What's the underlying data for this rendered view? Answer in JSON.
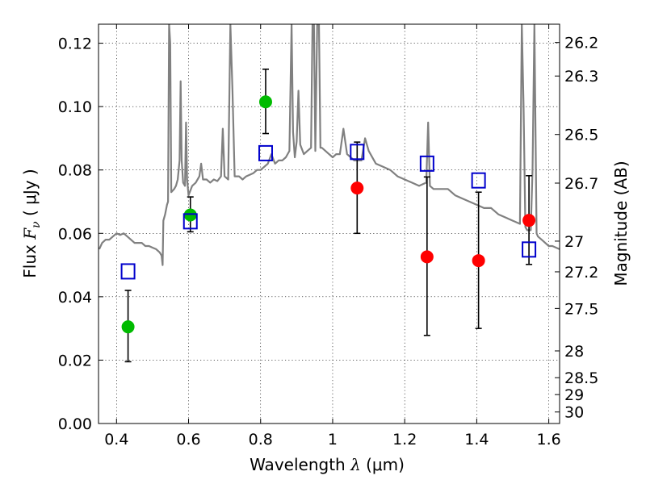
{
  "chart_data": {
    "type": "scatter",
    "title": "",
    "xlabel": {
      "prefix": "Wavelength ",
      "symbol": "λ",
      "unit": " (μm)"
    },
    "ylabel": {
      "prefix": "Flux ",
      "symbol": "F",
      "sub": "ν",
      "unit": " ( μJy )"
    },
    "y2label": "Magnitude (AB)",
    "xlim": [
      0.35,
      1.63
    ],
    "ylim": [
      0.0,
      0.126
    ],
    "grid": true,
    "x_ticks": [
      {
        "value": 0.4,
        "label": "0.4"
      },
      {
        "value": 0.6,
        "label": "0.6"
      },
      {
        "value": 0.8,
        "label": "0.8"
      },
      {
        "value": 1.0,
        "label": "1"
      },
      {
        "value": 1.2,
        "label": "1.2"
      },
      {
        "value": 1.4,
        "label": "1.4"
      },
      {
        "value": 1.6,
        "label": "1.6"
      }
    ],
    "y_ticks": [
      {
        "value": 0.0,
        "label": "0.00"
      },
      {
        "value": 0.02,
        "label": "0.02"
      },
      {
        "value": 0.04,
        "label": "0.04"
      },
      {
        "value": 0.06,
        "label": "0.06"
      },
      {
        "value": 0.08,
        "label": "0.08"
      },
      {
        "value": 0.1,
        "label": "0.10"
      },
      {
        "value": 0.12,
        "label": "0.12"
      }
    ],
    "mag_ticks": [
      {
        "mag": 26.2,
        "label": "26.2"
      },
      {
        "mag": 26.3,
        "label": "26.3"
      },
      {
        "mag": 26.5,
        "label": "26.5"
      },
      {
        "mag": 26.7,
        "label": "26.7"
      },
      {
        "mag": 27.0,
        "label": "27"
      },
      {
        "mag": 27.2,
        "label": "27.2"
      },
      {
        "mag": 27.5,
        "label": "27.5"
      },
      {
        "mag": 28.0,
        "label": "28"
      },
      {
        "mag": 28.5,
        "label": "28.5"
      },
      {
        "mag": 29.0,
        "label": "29"
      },
      {
        "mag": 30.0,
        "label": "30"
      }
    ],
    "model_spectrum": {
      "color": "#808080",
      "points": [
        [
          0.352,
          0.055
        ],
        [
          0.36,
          0.057
        ],
        [
          0.37,
          0.058
        ],
        [
          0.38,
          0.058
        ],
        [
          0.39,
          0.059
        ],
        [
          0.4,
          0.06
        ],
        [
          0.41,
          0.0595
        ],
        [
          0.42,
          0.06
        ],
        [
          0.43,
          0.059
        ],
        [
          0.44,
          0.058
        ],
        [
          0.45,
          0.057
        ],
        [
          0.46,
          0.057
        ],
        [
          0.47,
          0.057
        ],
        [
          0.48,
          0.056
        ],
        [
          0.49,
          0.056
        ],
        [
          0.5,
          0.0555
        ],
        [
          0.51,
          0.055
        ],
        [
          0.52,
          0.054
        ],
        [
          0.525,
          0.053
        ],
        [
          0.528,
          0.05
        ],
        [
          0.53,
          0.064
        ],
        [
          0.535,
          0.066
        ],
        [
          0.54,
          0.069
        ],
        [
          0.543,
          0.07
        ],
        [
          0.546,
          0.126
        ],
        [
          0.549,
          0.12
        ],
        [
          0.552,
          0.073
        ],
        [
          0.56,
          0.074
        ],
        [
          0.565,
          0.075
        ],
        [
          0.57,
          0.077
        ],
        [
          0.575,
          0.083
        ],
        [
          0.578,
          0.108
        ],
        [
          0.581,
          0.083
        ],
        [
          0.585,
          0.076
        ],
        [
          0.59,
          0.075
        ],
        [
          0.593,
          0.095
        ],
        [
          0.596,
          0.077
        ],
        [
          0.6,
          0.072
        ],
        [
          0.61,
          0.075
        ],
        [
          0.62,
          0.076
        ],
        [
          0.63,
          0.078
        ],
        [
          0.635,
          0.082
        ],
        [
          0.64,
          0.077
        ],
        [
          0.65,
          0.077
        ],
        [
          0.66,
          0.076
        ],
        [
          0.67,
          0.077
        ],
        [
          0.68,
          0.0765
        ],
        [
          0.69,
          0.078
        ],
        [
          0.695,
          0.093
        ],
        [
          0.7,
          0.078
        ],
        [
          0.71,
          0.077
        ],
        [
          0.716,
          0.126
        ],
        [
          0.722,
          0.105
        ],
        [
          0.728,
          0.078
        ],
        [
          0.74,
          0.078
        ],
        [
          0.75,
          0.077
        ],
        [
          0.76,
          0.078
        ],
        [
          0.77,
          0.0785
        ],
        [
          0.78,
          0.079
        ],
        [
          0.79,
          0.08
        ],
        [
          0.8,
          0.08
        ],
        [
          0.81,
          0.081
        ],
        [
          0.82,
          0.082
        ],
        [
          0.83,
          0.085
        ],
        [
          0.84,
          0.082
        ],
        [
          0.85,
          0.083
        ],
        [
          0.86,
          0.083
        ],
        [
          0.87,
          0.084
        ],
        [
          0.88,
          0.086
        ],
        [
          0.886,
          0.126
        ],
        [
          0.89,
          0.092
        ],
        [
          0.895,
          0.084
        ],
        [
          0.9,
          0.089
        ],
        [
          0.905,
          0.105
        ],
        [
          0.91,
          0.088
        ],
        [
          0.92,
          0.085
        ],
        [
          0.93,
          0.086
        ],
        [
          0.94,
          0.087
        ],
        [
          0.944,
          0.126
        ],
        [
          0.948,
          0.126
        ],
        [
          0.952,
          0.086
        ],
        [
          0.957,
          0.126
        ],
        [
          0.962,
          0.126
        ],
        [
          0.966,
          0.087
        ],
        [
          0.97,
          0.087
        ],
        [
          0.98,
          0.086
        ],
        [
          0.99,
          0.085
        ],
        [
          1.0,
          0.084
        ],
        [
          1.01,
          0.085
        ],
        [
          1.02,
          0.085
        ],
        [
          1.03,
          0.093
        ],
        [
          1.04,
          0.085
        ],
        [
          1.05,
          0.084
        ],
        [
          1.06,
          0.083
        ],
        [
          1.07,
          0.083
        ],
        [
          1.08,
          0.083
        ],
        [
          1.09,
          0.09
        ],
        [
          1.1,
          0.086
        ],
        [
          1.12,
          0.082
        ],
        [
          1.14,
          0.081
        ],
        [
          1.16,
          0.08
        ],
        [
          1.18,
          0.078
        ],
        [
          1.2,
          0.077
        ],
        [
          1.22,
          0.076
        ],
        [
          1.24,
          0.075
        ],
        [
          1.26,
          0.076
        ],
        [
          1.265,
          0.095
        ],
        [
          1.27,
          0.075
        ],
        [
          1.28,
          0.074
        ],
        [
          1.3,
          0.074
        ],
        [
          1.32,
          0.074
        ],
        [
          1.34,
          0.072
        ],
        [
          1.36,
          0.071
        ],
        [
          1.38,
          0.07
        ],
        [
          1.4,
          0.069
        ],
        [
          1.42,
          0.068
        ],
        [
          1.44,
          0.068
        ],
        [
          1.46,
          0.066
        ],
        [
          1.48,
          0.065
        ],
        [
          1.5,
          0.064
        ],
        [
          1.52,
          0.063
        ],
        [
          1.525,
          0.126
        ],
        [
          1.53,
          0.1
        ],
        [
          1.535,
          0.062
        ],
        [
          1.54,
          0.061
        ],
        [
          1.55,
          0.061
        ],
        [
          1.555,
          0.08
        ],
        [
          1.56,
          0.126
        ],
        [
          1.566,
          0.06
        ],
        [
          1.57,
          0.059
        ],
        [
          1.58,
          0.058
        ],
        [
          1.59,
          0.057
        ],
        [
          1.6,
          0.056
        ],
        [
          1.61,
          0.056
        ],
        [
          1.63,
          0.055
        ]
      ]
    },
    "series": [
      {
        "marker": "circle",
        "color": "#00bb00",
        "points": [
          {
            "x": 0.432,
            "y": 0.0305,
            "yerr_low": 0.0195,
            "yerr_high": 0.042
          },
          {
            "x": 0.605,
            "y": 0.0658,
            "yerr_low": 0.0605,
            "yerr_high": 0.0715
          },
          {
            "x": 0.814,
            "y": 0.1015,
            "yerr_low": 0.0915,
            "yerr_high": 0.1118
          }
        ]
      },
      {
        "marker": "circle",
        "color": "#ff0000",
        "points": [
          {
            "x": 1.068,
            "y": 0.0743,
            "yerr_low": 0.06,
            "yerr_high": 0.0888
          },
          {
            "x": 1.262,
            "y": 0.0526,
            "yerr_low": 0.0278,
            "yerr_high": 0.0778
          },
          {
            "x": 1.405,
            "y": 0.0514,
            "yerr_low": 0.03,
            "yerr_high": 0.073
          },
          {
            "x": 1.545,
            "y": 0.0641,
            "yerr_low": 0.0502,
            "yerr_high": 0.0782
          }
        ]
      },
      {
        "marker": "open-square",
        "color": "#0000cc",
        "points": [
          {
            "x": 0.432,
            "y": 0.048
          },
          {
            "x": 0.605,
            "y": 0.0638
          },
          {
            "x": 0.814,
            "y": 0.0853
          },
          {
            "x": 1.068,
            "y": 0.0857
          },
          {
            "x": 1.262,
            "y": 0.082
          },
          {
            "x": 1.405,
            "y": 0.0767
          },
          {
            "x": 1.545,
            "y": 0.0549
          }
        ]
      }
    ]
  }
}
